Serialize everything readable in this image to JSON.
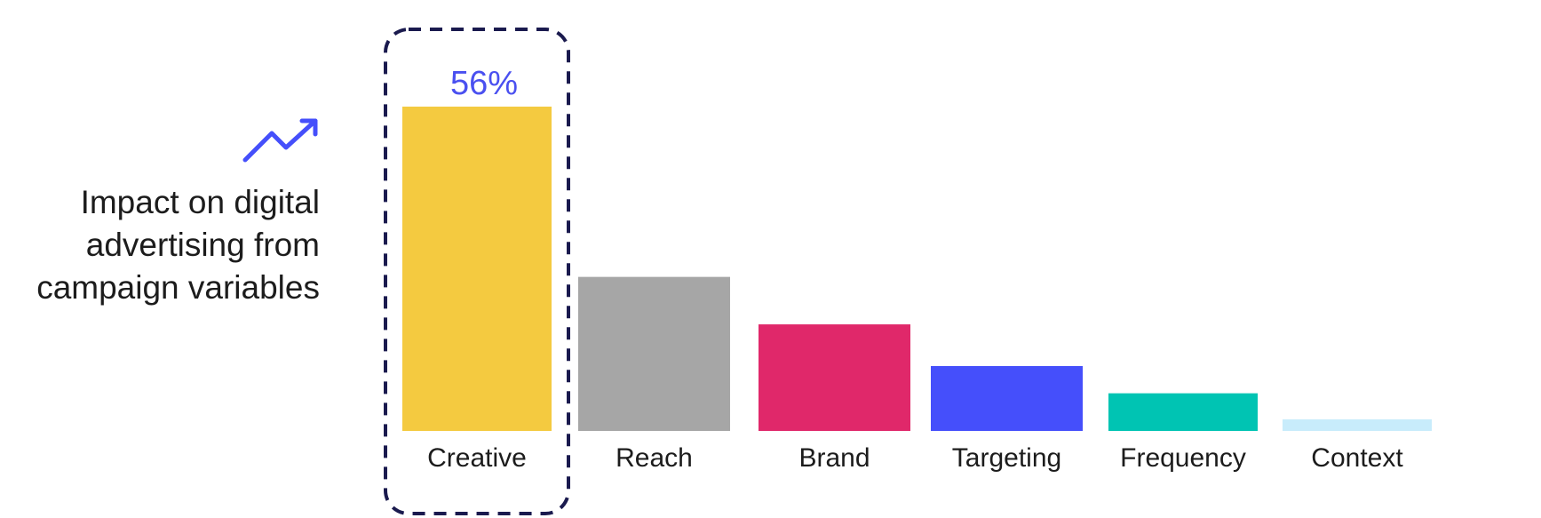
{
  "chart_data": {
    "type": "bar",
    "title_lines": [
      "Impact on digital",
      "advertising from",
      "campaign variables"
    ],
    "categories": [
      "Creative",
      "Reach",
      "Brand",
      "Targeting",
      "Frequency",
      "Context"
    ],
    "values": [
      56,
      26.6,
      18.4,
      11.2,
      6.5,
      2.0
    ],
    "colors": [
      "#f4ca40",
      "#a6a6a6",
      "#e0286a",
      "#454ffb",
      "#00c4b3",
      "#c8ecfb"
    ],
    "data_labels": [
      "56%",
      "",
      "",
      "",
      "",
      ""
    ],
    "highlight_category": "Creative",
    "highlight_style": "dashed-outline",
    "highlight_color": "#1a1a4e",
    "label_color": "#4a50f0",
    "icon": "trending-up-icon",
    "icon_color": "#454ffb",
    "ylim": [
      0,
      56
    ],
    "grid": false,
    "legend": "none"
  }
}
